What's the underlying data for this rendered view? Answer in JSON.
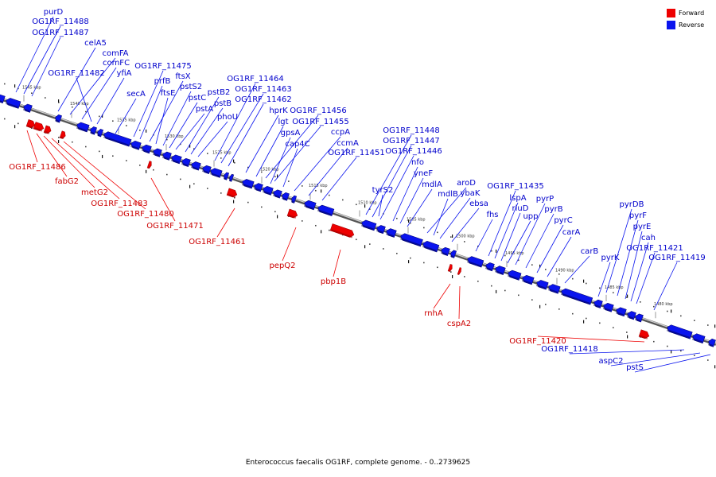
{
  "legend": {
    "forward_label": "Forward",
    "reverse_label": "Reverse",
    "forward_color": "#ee0000",
    "reverse_color": "#0a14ee"
  },
  "caption": "Enterococcus faecalis OG1RF, complete genome. - 0..2739625",
  "ticks": [
    "1545 kbp",
    "1540 kbp",
    "1535 kbp",
    "1530 kbp",
    "1525 kbp",
    "1520 kbp",
    "1515 kbp",
    "1510 kbp",
    "1505 kbp",
    "1500 kbp",
    "1495 kbp",
    "1490 kbp",
    "1485 kbp",
    "1480 kbp"
  ],
  "reverse_genes": [
    "purD",
    "OG1RF_11488",
    "OG1RF_11487",
    "celA5",
    "comFA",
    "comFC",
    "OG1RF_11482",
    "yfiA",
    "secA",
    "OG1RF_11475",
    "prfB",
    "ftsX",
    "ftsE",
    "pstS2",
    "pstC",
    "pstA",
    "pstB2",
    "pstB",
    "phoU",
    "OG1RF_11464",
    "OG1RF_11463",
    "OG1RF_11462",
    "hprK",
    "lgt",
    "OG1RF_11456",
    "OG1RF_11455",
    "gpsA",
    "cap4C",
    "ccpA",
    "ccmA",
    "OG1RF_11451",
    "OG1RF_11448",
    "OG1RF_11447",
    "OG1RF_11446",
    "tyrS2",
    "nfo",
    "yneF",
    "mdlA",
    "aroD",
    "ybaK",
    "mdlB",
    "ebsa",
    "fhs",
    "OG1RF_11435",
    "lspA",
    "rluD",
    "upp",
    "pyrP",
    "pyrB",
    "pyrC",
    "carA",
    "carB",
    "pyrDB",
    "pyrF",
    "pyrE",
    "cah",
    "pyrK",
    "OG1RF_11421",
    "OG1RF_11419",
    "OG1RF_11418",
    "aspC2",
    "pstS"
  ],
  "forward_genes": [
    "OG1RF_11486",
    "fabG2",
    "metG2",
    "OG1RF_11483",
    "OG1RF_11480",
    "OG1RF_11471",
    "OG1RF_11461",
    "pepQ2",
    "pbp1B",
    "rnhA",
    "cspA2",
    "OG1RF_11420"
  ]
}
